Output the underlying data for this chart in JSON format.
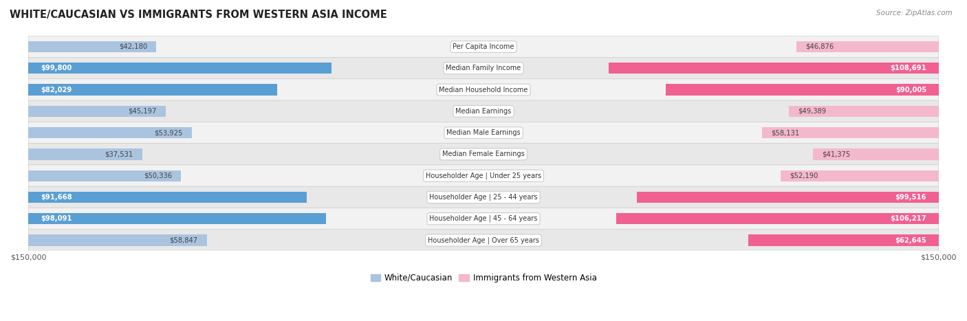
{
  "title": "WHITE/CAUCASIAN VS IMMIGRANTS FROM WESTERN ASIA INCOME",
  "source": "Source: ZipAtlas.com",
  "categories": [
    "Per Capita Income",
    "Median Family Income",
    "Median Household Income",
    "Median Earnings",
    "Median Male Earnings",
    "Median Female Earnings",
    "Householder Age | Under 25 years",
    "Householder Age | 25 - 44 years",
    "Householder Age | 45 - 64 years",
    "Householder Age | Over 65 years"
  ],
  "white_values": [
    42180,
    99800,
    82029,
    45197,
    53925,
    37531,
    50336,
    91668,
    98091,
    58847
  ],
  "immigrant_values": [
    46876,
    108691,
    90005,
    49389,
    58131,
    41375,
    52190,
    99516,
    106217,
    62645
  ],
  "white_labels": [
    "$42,180",
    "$99,800",
    "$82,029",
    "$45,197",
    "$53,925",
    "$37,531",
    "$50,336",
    "$91,668",
    "$98,091",
    "$58,847"
  ],
  "immigrant_labels": [
    "$46,876",
    "$108,691",
    "$90,005",
    "$49,389",
    "$58,131",
    "$41,375",
    "$52,190",
    "$99,516",
    "$106,217",
    "$62,645"
  ],
  "max_val": 150000,
  "white_color_light": "#aac4e0",
  "white_color_dark": "#5a9fd4",
  "immigrant_color_light": "#f4b8cc",
  "immigrant_color_dark": "#f06090",
  "row_bg_light": "#f7f7f7",
  "row_bg_dark": "#eeeeee",
  "bar_height": 0.52,
  "legend_white": "White/Caucasian",
  "legend_immigrant": "Immigrants from Western Asia",
  "white_threshold": 60000,
  "immigrant_threshold": 60000
}
